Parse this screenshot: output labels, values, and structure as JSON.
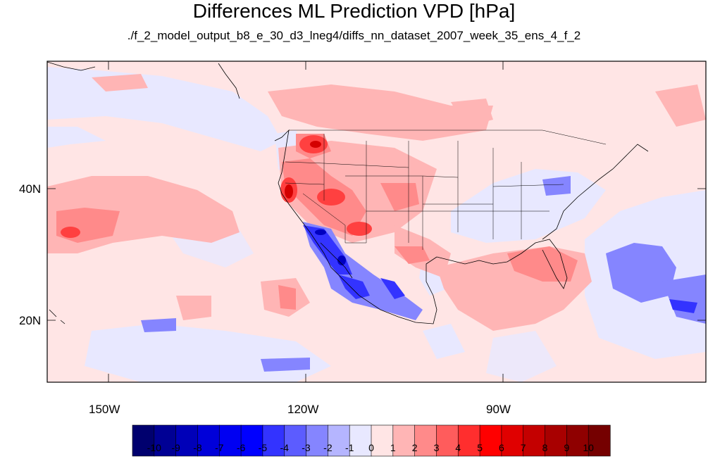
{
  "title": "Differences ML Prediction VPD [hPa]",
  "subtitle": "./f_2_model_output_b8_e_30_d3_lneg4/diffs_nn_dataset_2007_week_35_ens_4_f_2",
  "map": {
    "projection": "cylindrical-equidistant",
    "lon_range": [
      -160,
      -62
    ],
    "lat_range": [
      10,
      60
    ],
    "background_level": "0 to 1 (light pink)",
    "x_ticks": [
      {
        "value": -150,
        "label": "150W"
      },
      {
        "value": -120,
        "label": "120W"
      },
      {
        "value": -90,
        "label": "90W"
      }
    ],
    "y_ticks": [
      {
        "value": 40,
        "label": "40N"
      },
      {
        "value": 20,
        "label": "20N"
      }
    ]
  },
  "colorbar": {
    "labels": [
      "-10",
      "-9",
      "-8",
      "-7",
      "-6",
      "-5",
      "-4",
      "-3",
      "-2",
      "-1",
      "0",
      "1",
      "2",
      "3",
      "4",
      "5",
      "6",
      "7",
      "8",
      "9",
      "10"
    ],
    "colors": [
      "#00006e",
      "#000094",
      "#0000b8",
      "#0000d9",
      "#0000f2",
      "#0000ff",
      "#3333ff",
      "#5c5cff",
      "#8585ff",
      "#b5b5ff",
      "#e8e8ff",
      "#ffe5e5",
      "#ffb5b5",
      "#ff8a8a",
      "#ff5c5c",
      "#ff2e2e",
      "#ff0000",
      "#e00000",
      "#c40000",
      "#a80000",
      "#8f0000",
      "#750000"
    ]
  }
}
